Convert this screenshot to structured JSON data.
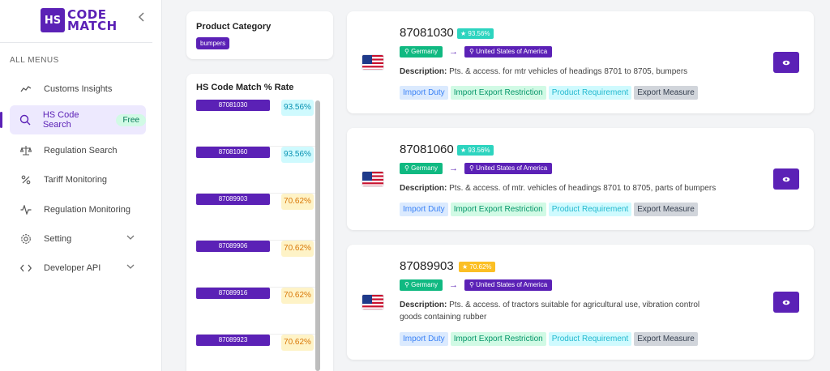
{
  "brand": {
    "badge": "HS",
    "line1": "CODE",
    "line2": "MATCH",
    "color": "#5b21b6"
  },
  "sidebar": {
    "collapse_icon": "chevron-left-icon",
    "menu_title": "ALL MENUS",
    "items": [
      {
        "label": "Customs Insights",
        "icon": "trend-icon"
      },
      {
        "label": "HS Code Search",
        "icon": "search-icon",
        "badge": "Free",
        "active": true
      },
      {
        "label": "Regulation Search",
        "icon": "scale-icon"
      },
      {
        "label": "Tariff Monitoring",
        "icon": "percent-icon"
      },
      {
        "label": "Regulation Monitoring",
        "icon": "pulse-icon"
      },
      {
        "label": "Setting",
        "icon": "gear-icon",
        "expandable": true
      },
      {
        "label": "Developer API",
        "icon": "code-icon",
        "expandable": true
      }
    ]
  },
  "category": {
    "title": "Product Category",
    "value": "bumpers"
  },
  "rates": {
    "title": "HS Code Match % Rate",
    "rows": [
      {
        "code": "87081030",
        "pct": "93.56%",
        "level": "high"
      },
      {
        "code": "87081060",
        "pct": "93.56%",
        "level": "high"
      },
      {
        "code": "87089903",
        "pct": "70.62%",
        "level": "medium"
      },
      {
        "code": "87089906",
        "pct": "70.62%",
        "level": "medium"
      },
      {
        "code": "87089916",
        "pct": "70.62%",
        "level": "medium"
      },
      {
        "code": "87089923",
        "pct": "70.62%",
        "level": "medium"
      }
    ]
  },
  "results": [
    {
      "code": "87081030",
      "score": "93.56%",
      "level": "high",
      "origin": "Germany",
      "destination": "United States of America",
      "desc_label": "Description:",
      "description": "Pts. & access. for mtr vehicles of headings 8701 to 8705, bumpers",
      "tags": [
        "Import Duty",
        "Import Export Restriction",
        "Product Requirement",
        "Export Measure"
      ]
    },
    {
      "code": "87081060",
      "score": "93.56%",
      "level": "high",
      "origin": "Germany",
      "destination": "United States of America",
      "desc_label": "Description:",
      "description": "Pts. & access. of mtr. vehicles of headings 8701 to 8705, parts of bumpers",
      "tags": [
        "Import Duty",
        "Import Export Restriction",
        "Product Requirement",
        "Export Measure"
      ]
    },
    {
      "code": "87089903",
      "score": "70.62%",
      "level": "medium",
      "origin": "Germany",
      "destination": "United States of America",
      "desc_label": "Description:",
      "description": "Pts. & access. of tractors suitable for agricultural use, vibration control goods containing rubber",
      "tags": [
        "Import Duty",
        "Import Export Restriction",
        "Product Requirement",
        "Export Measure"
      ]
    }
  ],
  "colors": {
    "accent": "#5b21b6",
    "high": "#2dd4bf",
    "medium": "#fbbf24",
    "origin_chip": "#10b981"
  }
}
